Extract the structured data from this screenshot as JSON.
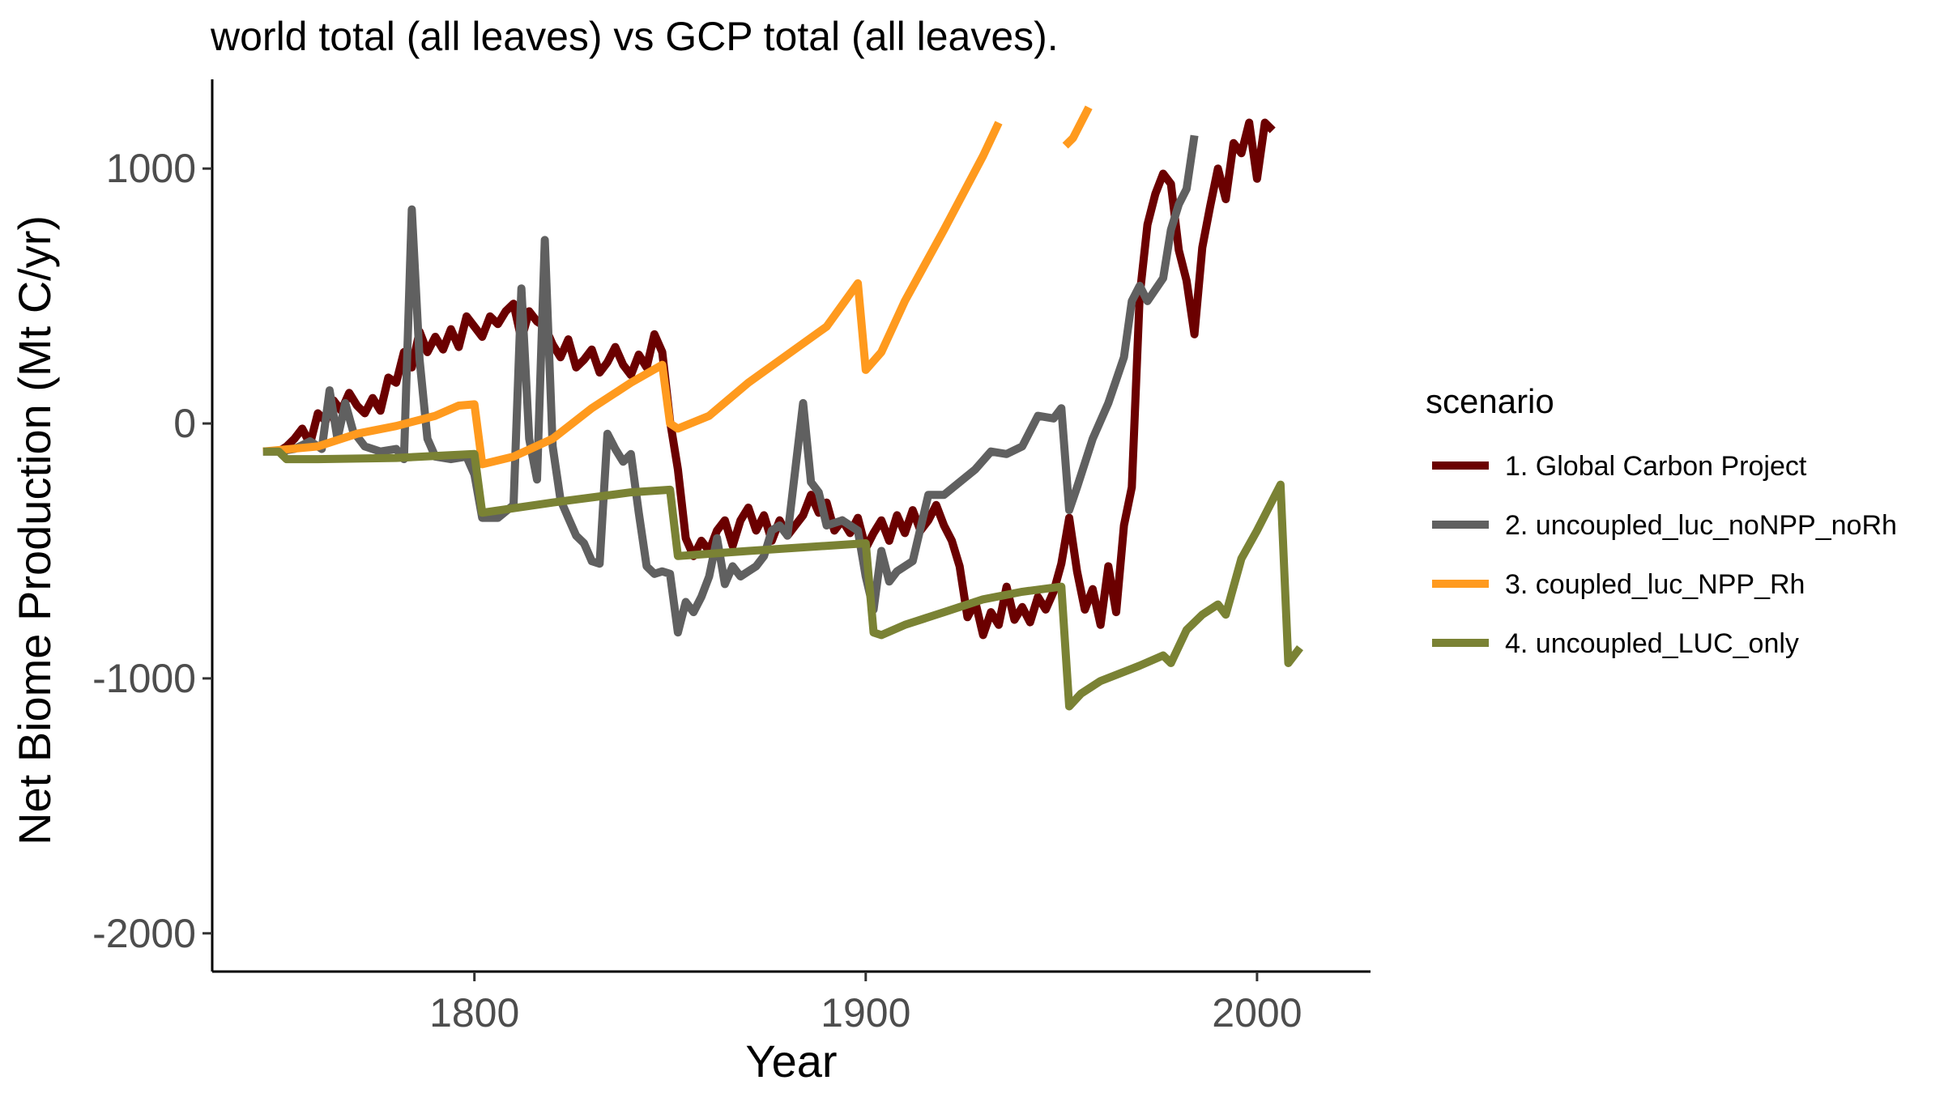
{
  "chart_data": {
    "type": "line",
    "title": "world total (all leaves) vs GCP total (all leaves).",
    "xlabel": "Year",
    "ylabel": "Net Biome Production (Mt C/yr)",
    "xlim": [
      1733,
      2029
    ],
    "ylim": [
      -2150,
      1350
    ],
    "xticks": [
      1800,
      1900,
      2000
    ],
    "yticks": [
      -2000,
      -1000,
      0,
      1000
    ],
    "grid": false,
    "legend": {
      "title": "scenario",
      "position": "right"
    },
    "series": [
      {
        "name": "1. Global Carbon Project",
        "color": "#6b0000",
        "points": [
          [
            1750,
            -110
          ],
          [
            1752,
            -90
          ],
          [
            1754,
            -60
          ],
          [
            1756,
            -20
          ],
          [
            1758,
            -80
          ],
          [
            1760,
            40
          ],
          [
            1762,
            10
          ],
          [
            1764,
            90
          ],
          [
            1766,
            50
          ],
          [
            1768,
            120
          ],
          [
            1770,
            70
          ],
          [
            1772,
            40
          ],
          [
            1774,
            100
          ],
          [
            1776,
            50
          ],
          [
            1778,
            180
          ],
          [
            1780,
            160
          ],
          [
            1782,
            280
          ],
          [
            1784,
            220
          ],
          [
            1786,
            360
          ],
          [
            1788,
            280
          ],
          [
            1790,
            340
          ],
          [
            1792,
            290
          ],
          [
            1794,
            370
          ],
          [
            1796,
            300
          ],
          [
            1798,
            420
          ],
          [
            1800,
            380
          ],
          [
            1802,
            340
          ],
          [
            1804,
            420
          ],
          [
            1806,
            390
          ],
          [
            1808,
            440
          ],
          [
            1810,
            470
          ],
          [
            1812,
            330
          ],
          [
            1814,
            440
          ],
          [
            1816,
            400
          ],
          [
            1818,
            380
          ],
          [
            1820,
            310
          ],
          [
            1822,
            260
          ],
          [
            1824,
            330
          ],
          [
            1826,
            220
          ],
          [
            1828,
            250
          ],
          [
            1830,
            290
          ],
          [
            1832,
            200
          ],
          [
            1834,
            240
          ],
          [
            1836,
            300
          ],
          [
            1838,
            230
          ],
          [
            1840,
            190
          ],
          [
            1842,
            270
          ],
          [
            1844,
            220
          ],
          [
            1846,
            350
          ],
          [
            1848,
            280
          ],
          [
            1850,
            10
          ],
          [
            1852,
            -180
          ],
          [
            1854,
            -450
          ],
          [
            1856,
            -520
          ],
          [
            1858,
            -460
          ],
          [
            1860,
            -500
          ],
          [
            1862,
            -420
          ],
          [
            1864,
            -380
          ],
          [
            1866,
            -480
          ],
          [
            1868,
            -380
          ],
          [
            1870,
            -330
          ],
          [
            1872,
            -420
          ],
          [
            1874,
            -360
          ],
          [
            1876,
            -460
          ],
          [
            1878,
            -380
          ],
          [
            1880,
            -440
          ],
          [
            1882,
            -400
          ],
          [
            1884,
            -360
          ],
          [
            1886,
            -280
          ],
          [
            1888,
            -350
          ],
          [
            1890,
            -310
          ],
          [
            1892,
            -420
          ],
          [
            1894,
            -380
          ],
          [
            1896,
            -430
          ],
          [
            1898,
            -370
          ],
          [
            1900,
            -490
          ],
          [
            1902,
            -430
          ],
          [
            1904,
            -380
          ],
          [
            1906,
            -460
          ],
          [
            1908,
            -360
          ],
          [
            1910,
            -430
          ],
          [
            1912,
            -340
          ],
          [
            1914,
            -420
          ],
          [
            1916,
            -380
          ],
          [
            1918,
            -320
          ],
          [
            1920,
            -400
          ],
          [
            1922,
            -460
          ],
          [
            1924,
            -560
          ],
          [
            1926,
            -760
          ],
          [
            1928,
            -700
          ],
          [
            1930,
            -830
          ],
          [
            1932,
            -740
          ],
          [
            1934,
            -790
          ],
          [
            1936,
            -640
          ],
          [
            1938,
            -770
          ],
          [
            1940,
            -720
          ],
          [
            1942,
            -780
          ],
          [
            1944,
            -680
          ],
          [
            1946,
            -730
          ],
          [
            1948,
            -660
          ],
          [
            1950,
            -550
          ],
          [
            1952,
            -370
          ],
          [
            1954,
            -580
          ],
          [
            1956,
            -730
          ],
          [
            1958,
            -650
          ],
          [
            1960,
            -790
          ],
          [
            1962,
            -560
          ],
          [
            1964,
            -740
          ],
          [
            1966,
            -400
          ],
          [
            1968,
            -250
          ],
          [
            1970,
            500
          ],
          [
            1972,
            780
          ],
          [
            1974,
            900
          ],
          [
            1976,
            980
          ],
          [
            1978,
            940
          ],
          [
            1980,
            680
          ],
          [
            1982,
            560
          ],
          [
            1984,
            350
          ],
          [
            1986,
            690
          ],
          [
            1988,
            850
          ],
          [
            1990,
            1000
          ],
          [
            1992,
            880
          ],
          [
            1994,
            1100
          ],
          [
            1996,
            1060
          ],
          [
            1998,
            1180
          ],
          [
            2000,
            960
          ],
          [
            2002,
            1180
          ],
          [
            2004,
            1150
          ]
        ]
      },
      {
        "name": "2. uncoupled_luc_noNPP_noRh",
        "color": "#606060",
        "points": [
          [
            1746,
            -110
          ],
          [
            1750,
            -110
          ],
          [
            1754,
            -100
          ],
          [
            1758,
            -70
          ],
          [
            1761,
            -100
          ],
          [
            1763,
            130
          ],
          [
            1765,
            -60
          ],
          [
            1767,
            80
          ],
          [
            1769,
            -30
          ],
          [
            1772,
            -90
          ],
          [
            1776,
            -110
          ],
          [
            1780,
            -100
          ],
          [
            1782,
            -140
          ],
          [
            1784,
            840
          ],
          [
            1786,
            250
          ],
          [
            1788,
            -60
          ],
          [
            1790,
            -130
          ],
          [
            1794,
            -140
          ],
          [
            1798,
            -130
          ],
          [
            1800,
            -200
          ],
          [
            1802,
            -370
          ],
          [
            1806,
            -370
          ],
          [
            1810,
            -320
          ],
          [
            1812,
            530
          ],
          [
            1814,
            -60
          ],
          [
            1816,
            -220
          ],
          [
            1818,
            720
          ],
          [
            1820,
            -90
          ],
          [
            1822,
            -300
          ],
          [
            1824,
            -370
          ],
          [
            1826,
            -440
          ],
          [
            1828,
            -470
          ],
          [
            1830,
            -540
          ],
          [
            1832,
            -550
          ],
          [
            1834,
            -40
          ],
          [
            1836,
            -100
          ],
          [
            1838,
            -150
          ],
          [
            1840,
            -120
          ],
          [
            1842,
            -350
          ],
          [
            1844,
            -560
          ],
          [
            1846,
            -590
          ],
          [
            1848,
            -580
          ],
          [
            1850,
            -590
          ],
          [
            1852,
            -820
          ],
          [
            1854,
            -700
          ],
          [
            1856,
            -740
          ],
          [
            1858,
            -680
          ],
          [
            1860,
            -600
          ],
          [
            1862,
            -450
          ],
          [
            1864,
            -630
          ],
          [
            1866,
            -560
          ],
          [
            1868,
            -600
          ],
          [
            1870,
            -580
          ],
          [
            1872,
            -560
          ],
          [
            1874,
            -520
          ],
          [
            1876,
            -420
          ],
          [
            1878,
            -400
          ],
          [
            1880,
            -440
          ],
          [
            1884,
            80
          ],
          [
            1886,
            -230
          ],
          [
            1888,
            -270
          ],
          [
            1890,
            -400
          ],
          [
            1894,
            -380
          ],
          [
            1898,
            -420
          ],
          [
            1900,
            -600
          ],
          [
            1902,
            -730
          ],
          [
            1904,
            -500
          ],
          [
            1906,
            -620
          ],
          [
            1908,
            -580
          ],
          [
            1912,
            -540
          ],
          [
            1916,
            -280
          ],
          [
            1920,
            -280
          ],
          [
            1924,
            -230
          ],
          [
            1928,
            -180
          ],
          [
            1932,
            -110
          ],
          [
            1936,
            -120
          ],
          [
            1940,
            -90
          ],
          [
            1944,
            30
          ],
          [
            1948,
            20
          ],
          [
            1950,
            60
          ],
          [
            1952,
            -340
          ],
          [
            1954,
            -250
          ],
          [
            1958,
            -60
          ],
          [
            1962,
            80
          ],
          [
            1966,
            260
          ],
          [
            1968,
            480
          ],
          [
            1970,
            540
          ],
          [
            1972,
            480
          ],
          [
            1976,
            570
          ],
          [
            1978,
            760
          ],
          [
            1980,
            860
          ],
          [
            1982,
            920
          ],
          [
            1984,
            1130
          ]
        ]
      },
      {
        "name": "3. coupled_luc_NPP_Rh",
        "color": "#ff9a1e",
        "segments": [
          [
            [
              1746,
              -110
            ],
            [
              1760,
              -90
            ],
            [
              1770,
              -40
            ],
            [
              1780,
              -10
            ],
            [
              1790,
              30
            ],
            [
              1796,
              70
            ],
            [
              1800,
              75
            ],
            [
              1802,
              -160
            ],
            [
              1810,
              -130
            ],
            [
              1820,
              -60
            ],
            [
              1830,
              60
            ],
            [
              1840,
              160
            ],
            [
              1848,
              230
            ],
            [
              1850,
              0
            ],
            [
              1852,
              -20
            ],
            [
              1860,
              30
            ],
            [
              1870,
              160
            ],
            [
              1880,
              270
            ],
            [
              1890,
              380
            ],
            [
              1898,
              550
            ],
            [
              1900,
              210
            ],
            [
              1904,
              280
            ],
            [
              1910,
              480
            ],
            [
              1920,
              760
            ],
            [
              1930,
              1050
            ],
            [
              1934,
              1180
            ]
          ],
          [
            [
              1951,
              1090
            ],
            [
              1953,
              1120
            ],
            [
              1955,
              1180
            ],
            [
              1957,
              1240
            ]
          ]
        ]
      },
      {
        "name": "4. uncoupled_LUC_only",
        "color": "#7a8234",
        "points": [
          [
            1746,
            -110
          ],
          [
            1750,
            -110
          ],
          [
            1752,
            -140
          ],
          [
            1760,
            -140
          ],
          [
            1780,
            -135
          ],
          [
            1800,
            -120
          ],
          [
            1802,
            -350
          ],
          [
            1820,
            -310
          ],
          [
            1840,
            -270
          ],
          [
            1850,
            -260
          ],
          [
            1852,
            -520
          ],
          [
            1870,
            -500
          ],
          [
            1900,
            -470
          ],
          [
            1902,
            -820
          ],
          [
            1904,
            -830
          ],
          [
            1910,
            -790
          ],
          [
            1920,
            -740
          ],
          [
            1930,
            -690
          ],
          [
            1940,
            -660
          ],
          [
            1950,
            -640
          ],
          [
            1952,
            -1110
          ],
          [
            1955,
            -1060
          ],
          [
            1960,
            -1010
          ],
          [
            1970,
            -950
          ],
          [
            1976,
            -910
          ],
          [
            1978,
            -940
          ],
          [
            1982,
            -810
          ],
          [
            1986,
            -750
          ],
          [
            1990,
            -710
          ],
          [
            1992,
            -750
          ],
          [
            1996,
            -530
          ],
          [
            2000,
            -420
          ],
          [
            2004,
            -300
          ],
          [
            2006,
            -240
          ],
          [
            2008,
            -940
          ],
          [
            2011,
            -880
          ]
        ]
      }
    ]
  }
}
